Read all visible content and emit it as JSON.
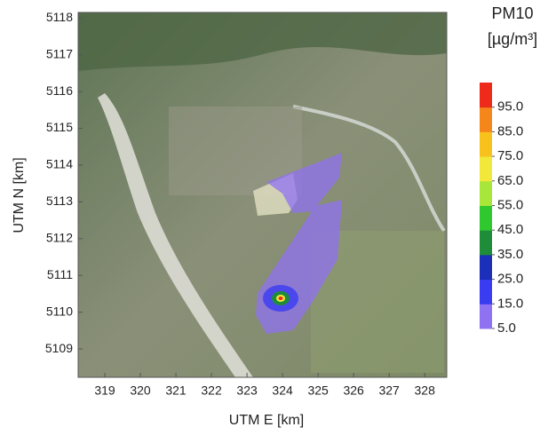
{
  "chart_data": {
    "type": "map",
    "xlabel": "UTM E [km]",
    "ylabel": "UTM N [km]",
    "xlim": [
      318.25,
      328.62
    ],
    "ylim": [
      5108.23,
      5118.15
    ],
    "xticks": [
      319,
      320,
      321,
      322,
      323,
      324,
      325,
      326,
      327,
      328
    ],
    "yticks": [
      5109,
      5110,
      5111,
      5112,
      5113,
      5114,
      5115,
      5116,
      5117,
      5118
    ],
    "colorbar": {
      "title": "PM10",
      "unit": "[µg/m³]",
      "range": [
        5,
        105
      ],
      "ticks": [
        {
          "value": 5,
          "label": "5.0"
        },
        {
          "value": 15,
          "label": "15.0"
        },
        {
          "value": 25,
          "label": "25.0"
        },
        {
          "value": 35,
          "label": "35.0"
        },
        {
          "value": 45,
          "label": "45.0"
        },
        {
          "value": 55,
          "label": "55.0"
        },
        {
          "value": 65,
          "label": "65.0"
        },
        {
          "value": 75,
          "label": "75.0"
        },
        {
          "value": 85,
          "label": "85.0"
        },
        {
          "value": 95,
          "label": "95.0"
        }
      ],
      "colors": [
        "#8f72f2",
        "#3a3cf2",
        "#1c2fb8",
        "#1f8c3a",
        "#2fc82f",
        "#a8e63a",
        "#f2e83a",
        "#f7c21c",
        "#f5861a",
        "#ee2a1a"
      ]
    }
  }
}
